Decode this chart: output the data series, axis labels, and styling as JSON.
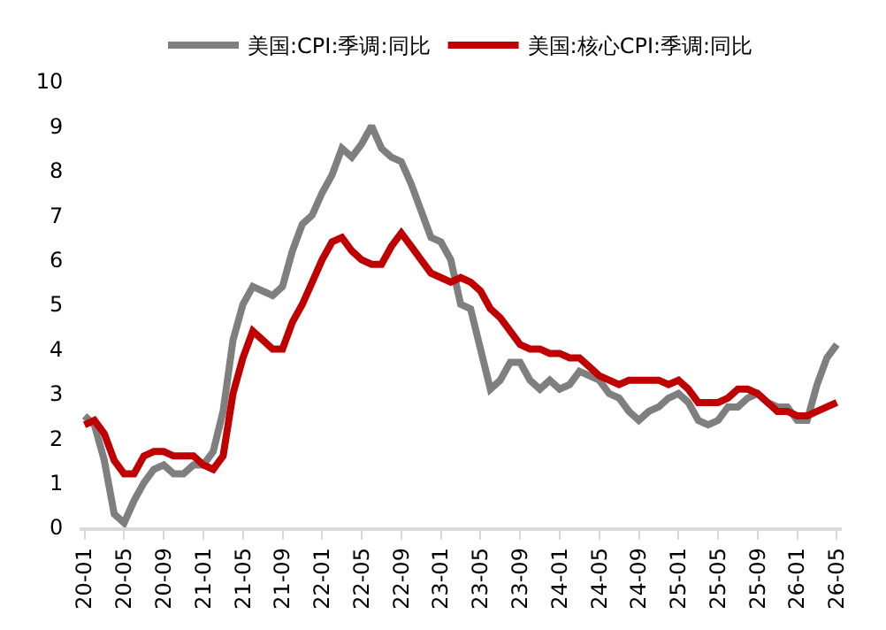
{
  "chart_data": {
    "type": "line",
    "categories": [
      "20-01",
      null,
      null,
      null,
      "20-05",
      null,
      null,
      null,
      "20-09",
      null,
      null,
      null,
      "21-01",
      null,
      null,
      null,
      "21-05",
      null,
      null,
      null,
      "21-09",
      null,
      null,
      null,
      "22-01",
      null,
      null,
      null,
      "22-05",
      null,
      null,
      null,
      "22-09",
      null,
      null,
      null,
      "23-01",
      null,
      null,
      null,
      "23-05",
      null,
      null,
      null,
      "23-09",
      null,
      null,
      null,
      "24-01",
      null,
      null,
      null,
      "24-05",
      null,
      null,
      null,
      "24-09",
      null,
      null,
      null,
      "25-01",
      null,
      null,
      null,
      "25-05",
      null,
      null,
      null,
      "25-09",
      null,
      null,
      null,
      "26-01",
      null,
      null,
      null,
      "26-05"
    ],
    "series": [
      {
        "name": "美国:CPI:季调:同比",
        "color": "#7f7f7f",
        "values": [
          2.5,
          2.3,
          1.5,
          0.3,
          0.1,
          0.6,
          1.0,
          1.3,
          1.4,
          1.2,
          1.2,
          1.4,
          1.4,
          1.7,
          2.6,
          4.2,
          5.0,
          5.4,
          5.3,
          5.2,
          5.4,
          6.2,
          6.8,
          7.0,
          7.5,
          7.9,
          8.5,
          8.3,
          8.6,
          9.0,
          8.5,
          8.3,
          8.2,
          7.7,
          7.1,
          6.5,
          6.4,
          6.0,
          5.0,
          4.9,
          4.0,
          3.1,
          3.3,
          3.7,
          3.7,
          3.3,
          3.1,
          3.3,
          3.1,
          3.2,
          3.5,
          3.4,
          3.3,
          3.0,
          2.9,
          2.6,
          2.4,
          2.6,
          2.7,
          2.9,
          3.0,
          2.8,
          2.4,
          2.3,
          2.4,
          2.7,
          2.7,
          2.9,
          3.0,
          2.8,
          2.7,
          2.7,
          2.4,
          2.4,
          3.2,
          3.8,
          4.1
        ]
      },
      {
        "name": "美国:核心CPI:季调:同比",
        "color": "#c00000",
        "values": [
          2.3,
          2.4,
          2.1,
          1.5,
          1.2,
          1.2,
          1.6,
          1.7,
          1.7,
          1.6,
          1.6,
          1.6,
          1.4,
          1.3,
          1.6,
          3.0,
          3.8,
          4.4,
          4.2,
          4.0,
          4.0,
          4.6,
          5.0,
          5.5,
          6.0,
          6.4,
          6.5,
          6.2,
          6.0,
          5.9,
          5.9,
          6.3,
          6.6,
          6.3,
          6.0,
          5.7,
          5.6,
          5.5,
          5.6,
          5.5,
          5.3,
          4.9,
          4.7,
          4.4,
          4.1,
          4.0,
          4.0,
          3.9,
          3.9,
          3.8,
          3.8,
          3.6,
          3.4,
          3.3,
          3.2,
          3.3,
          3.3,
          3.3,
          3.3,
          3.2,
          3.3,
          3.1,
          2.8,
          2.8,
          2.8,
          2.9,
          3.1,
          3.1,
          3.0,
          2.8,
          2.6,
          2.6,
          2.5,
          2.5,
          2.6,
          2.7,
          2.8
        ]
      }
    ],
    "ylim": [
      0,
      10
    ],
    "yticks": [
      0,
      1,
      2,
      3,
      4,
      5,
      6,
      7,
      8,
      9,
      10
    ],
    "legend": "top",
    "marker": "none",
    "line_style": "solid"
  }
}
